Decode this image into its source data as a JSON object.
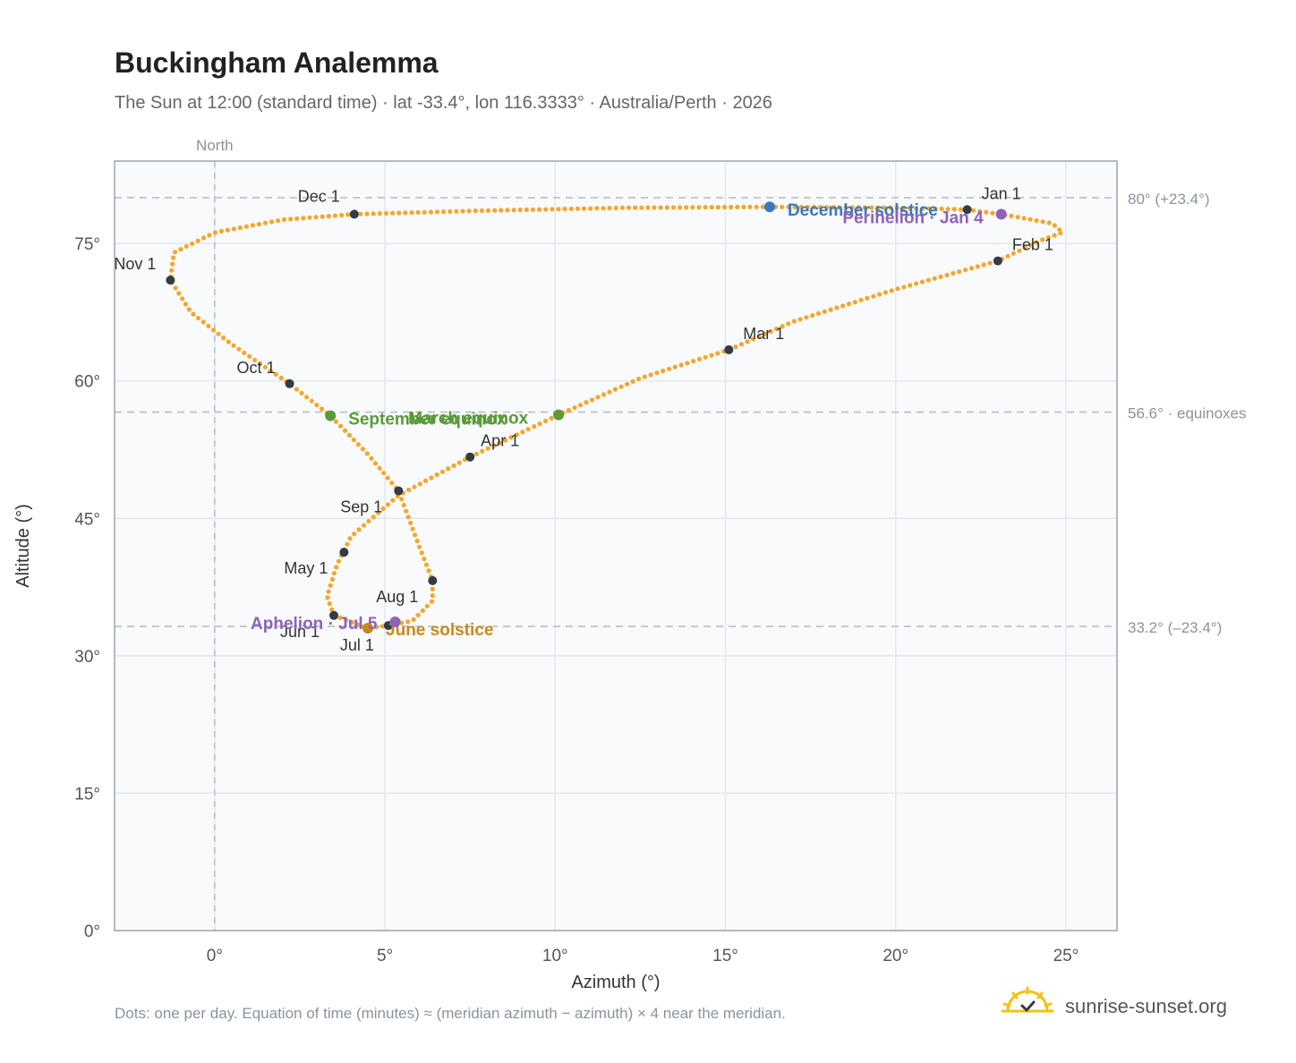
{
  "header": {
    "title": "Buckingham Analemma",
    "subtitle": "The Sun at 12:00 (standard time) · lat -33.4°, lon 116.3333° · Australia/Perth · 2026"
  },
  "footer": {
    "note": "Dots: one per day. Equation of time (minutes) ≈ (meridian azimuth − azimuth) × 4 near the meridian.",
    "brand": "sunrise-sunset.org"
  },
  "colors": {
    "analemma": "#f2a72e",
    "month_marker": "#333b45",
    "equinox": "#5a9a3a",
    "december_solstice": "#3b78c0",
    "june_solstice": "#c98a1a",
    "perihelion_aphelion": "#8f62b8",
    "plot_bg": "#f8fafc",
    "grid": "#e4e8ee",
    "ref_line": "#b8bec6"
  },
  "chart_data": {
    "type": "scatter",
    "title": "Buckingham Analemma",
    "xlabel": "Azimuth (°)",
    "ylabel": "Altitude (°)",
    "xlim": [
      -2.94,
      26.5
    ],
    "ylim": [
      0,
      84
    ],
    "x_ticks": [
      0,
      5,
      10,
      15,
      20,
      25
    ],
    "x_tick_labels": [
      "0°",
      "5°",
      "10°",
      "15°",
      "20°",
      "25°"
    ],
    "y_ticks": [
      0,
      15,
      30,
      45,
      60,
      75
    ],
    "y_tick_labels": [
      "0°",
      "15°",
      "30°",
      "45°",
      "60°",
      "75°"
    ],
    "grid": true,
    "north_line": {
      "x": 0,
      "label": "North"
    },
    "reference_lines": [
      {
        "y": 80.0,
        "label": "80° (+23.4°)"
      },
      {
        "y": 56.6,
        "label": "56.6° · equinoxes"
      },
      {
        "y": 33.2,
        "label": "33.2° (–23.4°)"
      }
    ],
    "analemma_path": [
      [
        22.1,
        78.7
      ],
      [
        23.1,
        78.2
      ],
      [
        24.6,
        77.2
      ],
      [
        24.9,
        76.2
      ],
      [
        24.3,
        75.4
      ],
      [
        23.0,
        73.1
      ],
      [
        20.0,
        70.0
      ],
      [
        17.0,
        66.5
      ],
      [
        15.1,
        63.4
      ],
      [
        12.5,
        60.3
      ],
      [
        10.1,
        56.3
      ],
      [
        7.5,
        51.7
      ],
      [
        5.4,
        47.5
      ],
      [
        4.0,
        43.0
      ],
      [
        3.6,
        40.0
      ],
      [
        3.3,
        36.5
      ],
      [
        3.5,
        34.4
      ],
      [
        4.5,
        33.0
      ],
      [
        5.1,
        33.3
      ],
      [
        5.8,
        33.8
      ],
      [
        6.4,
        36.0
      ],
      [
        6.4,
        38.2
      ],
      [
        6.0,
        42.0
      ],
      [
        5.4,
        48.0
      ],
      [
        4.5,
        52.0
      ],
      [
        3.4,
        56.2
      ],
      [
        2.2,
        59.7
      ],
      [
        0.5,
        64.0
      ],
      [
        -0.7,
        67.5
      ],
      [
        -1.3,
        71.0
      ],
      [
        -1.2,
        74.0
      ],
      [
        0.0,
        76.2
      ],
      [
        2.0,
        77.6
      ],
      [
        4.1,
        78.2
      ],
      [
        8.0,
        78.6
      ],
      [
        12.0,
        78.9
      ],
      [
        16.3,
        79.0
      ],
      [
        20.0,
        78.9
      ],
      [
        22.1,
        78.7
      ]
    ],
    "month_markers": [
      {
        "label": "Jan 1",
        "x": 22.1,
        "y": 78.7
      },
      {
        "label": "Feb 1",
        "x": 23.0,
        "y": 73.1
      },
      {
        "label": "Mar 1",
        "x": 15.1,
        "y": 63.4
      },
      {
        "label": "Apr 1",
        "x": 7.5,
        "y": 51.7
      },
      {
        "label": "May 1",
        "x": 3.8,
        "y": 41.3
      },
      {
        "label": "Jun 1",
        "x": 3.5,
        "y": 34.4
      },
      {
        "label": "Jul 1",
        "x": 5.1,
        "y": 33.3
      },
      {
        "label": "Aug 1",
        "x": 6.4,
        "y": 38.2
      },
      {
        "label": "Sep 1",
        "x": 5.4,
        "y": 48.0
      },
      {
        "label": "Oct 1",
        "x": 2.2,
        "y": 59.7
      },
      {
        "label": "Nov 1",
        "x": -1.3,
        "y": 71.0
      },
      {
        "label": "Dec 1",
        "x": 4.1,
        "y": 78.2
      }
    ],
    "special_points": [
      {
        "label": "March equinox",
        "x": 10.1,
        "y": 56.3,
        "kind": "equinox"
      },
      {
        "label": "September equinox",
        "x": 3.4,
        "y": 56.2,
        "kind": "equinox"
      },
      {
        "label": "December solstice",
        "x": 16.3,
        "y": 79.0,
        "kind": "december_solstice"
      },
      {
        "label": "June solstice",
        "x": 4.5,
        "y": 33.0,
        "kind": "june_solstice"
      },
      {
        "label": "Perihelion · Jan 4",
        "x": 23.1,
        "y": 78.2,
        "kind": "perihelion_aphelion"
      },
      {
        "label": "Aphelion · Jul 5",
        "x": 5.3,
        "y": 33.7,
        "kind": "perihelion_aphelion"
      }
    ]
  }
}
